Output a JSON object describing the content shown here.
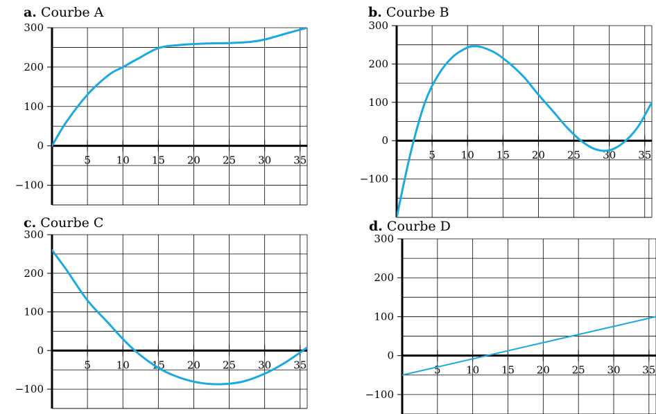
{
  "chart_data": [
    {
      "type": "line",
      "label": "a.",
      "title": "Courbe A",
      "xlim": [
        0,
        36
      ],
      "ylim": [
        -150,
        300
      ],
      "xticks": [
        5,
        10,
        15,
        20,
        25,
        30,
        35
      ],
      "yticks": [
        -100,
        0,
        100,
        200,
        300
      ],
      "ytick_labels": [
        "−100",
        "0",
        "100",
        "200",
        "300"
      ],
      "grid": true,
      "line_color": "#1aa9e0",
      "series": [
        {
          "x": [
            0,
            2,
            5,
            8,
            10,
            12,
            15,
            18,
            22,
            25,
            28,
            30,
            33,
            36
          ],
          "y": [
            0,
            60,
            130,
            180,
            200,
            220,
            248,
            256,
            260,
            261,
            264,
            270,
            285,
            300
          ]
        }
      ]
    },
    {
      "type": "line",
      "label": "b.",
      "title": "Courbe B",
      "xlim": [
        0,
        36
      ],
      "ylim": [
        -200,
        300
      ],
      "xticks": [
        5,
        10,
        15,
        20,
        25,
        30,
        35
      ],
      "yticks": [
        -100,
        0,
        100,
        200,
        300
      ],
      "ytick_labels": [
        "−100",
        "0",
        "100",
        "200",
        "300"
      ],
      "grid": true,
      "line_color": "#1aa9e0",
      "series": [
        {
          "x": [
            0,
            2,
            4,
            6,
            8,
            10,
            11,
            12,
            14,
            16,
            18,
            20,
            22,
            24,
            26,
            28,
            30,
            32,
            34,
            36
          ],
          "y": [
            -200,
            -30,
            100,
            175,
            220,
            243,
            246,
            244,
            228,
            200,
            165,
            120,
            78,
            35,
            0,
            -22,
            -25,
            -5,
            35,
            100
          ]
        }
      ]
    },
    {
      "type": "line",
      "label": "c.",
      "title": "Courbe C",
      "xlim": [
        0,
        36
      ],
      "ylim": [
        -150,
        300
      ],
      "xticks": [
        5,
        10,
        15,
        20,
        25,
        30,
        35
      ],
      "yticks": [
        -100,
        0,
        100,
        200,
        300
      ],
      "ytick_labels": [
        "−100",
        "0",
        "100",
        "200",
        "300"
      ],
      "grid": true,
      "line_color": "#1aa9e0",
      "series": [
        {
          "x": [
            0,
            2,
            5,
            8,
            10,
            12,
            15,
            18,
            21,
            24,
            27,
            30,
            33,
            36
          ],
          "y": [
            260,
            210,
            130,
            70,
            30,
            -5,
            -45,
            -70,
            -84,
            -87,
            -80,
            -60,
            -30,
            8
          ]
        }
      ]
    },
    {
      "type": "line",
      "label": "d.",
      "title": "Courbe D",
      "xlim": [
        0,
        36
      ],
      "ylim": [
        -150,
        300
      ],
      "xticks": [
        5,
        10,
        15,
        20,
        25,
        30,
        35
      ],
      "yticks": [
        -100,
        0,
        100,
        200,
        300
      ],
      "ytick_labels": [
        "−100",
        "0",
        "100",
        "200",
        "300"
      ],
      "grid": true,
      "line_color": "#1aa9e0",
      "series": [
        {
          "x": [
            0,
            36
          ],
          "y": [
            -50,
            100
          ]
        }
      ]
    }
  ]
}
